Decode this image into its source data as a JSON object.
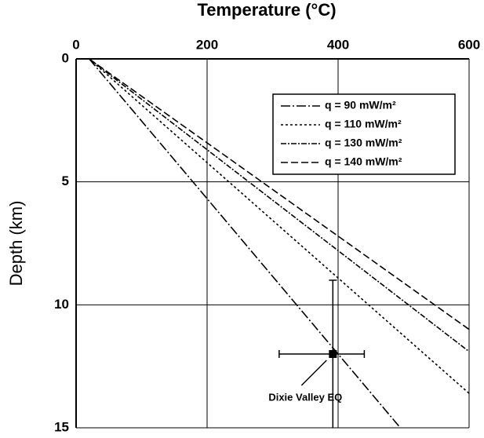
{
  "chart_data": {
    "type": "line",
    "xlabel": "Temperature (°C)",
    "ylabel": "Depth (km)",
    "xlim": [
      0,
      600
    ],
    "xticks": [
      0,
      200,
      400,
      600
    ],
    "ylim": [
      0,
      15
    ],
    "yticks": [
      0,
      5,
      10,
      15
    ],
    "y_inverted": true,
    "grid": true,
    "legend": "upper right",
    "series": [
      {
        "name": "q = 90 mW/m²",
        "color": "#000",
        "dash": "12 3 2 3",
        "x": [
          20,
          495
        ],
        "values": [
          0,
          15
        ]
      },
      {
        "name": "q = 110 mW/m²",
        "color": "#000",
        "dash": "3 3",
        "x": [
          20,
          600
        ],
        "values": [
          0,
          13.6
        ]
      },
      {
        "name": "q = 130 mW/m²",
        "color": "#000",
        "dash": "7 2 2 2",
        "x": [
          20,
          600
        ],
        "values": [
          0,
          11.9
        ]
      },
      {
        "name": "q = 140 mW/m²",
        "color": "#000",
        "dash": "9 4",
        "x": [
          20,
          600
        ],
        "values": [
          0,
          11
        ]
      }
    ],
    "point": {
      "label": "Dixie Valley EQ",
      "x": 392,
      "y": 12,
      "x_range": [
        310,
        440
      ],
      "y_range": [
        9,
        15
      ]
    }
  }
}
